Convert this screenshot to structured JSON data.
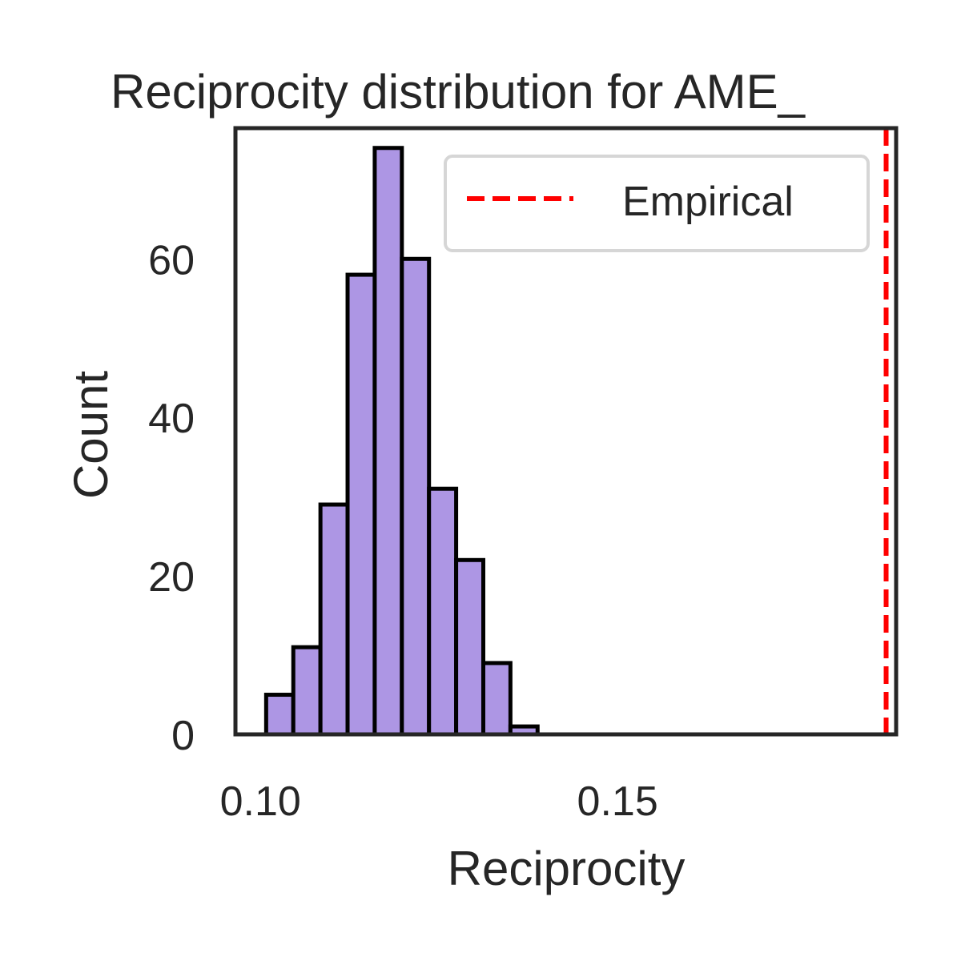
{
  "chart_data": {
    "type": "bar",
    "title": "Reciprocity distribution for AME_",
    "xlabel": "Reciprocity",
    "ylabel": "Count",
    "xlim": [
      0.0965,
      0.189
    ],
    "ylim": [
      0,
      76.5
    ],
    "x_ticks": [
      {
        "value": 0.1,
        "label": "0.10"
      },
      {
        "value": 0.15,
        "label": "0.15"
      }
    ],
    "y_ticks": [
      {
        "value": 0,
        "label": "0"
      },
      {
        "value": 20,
        "label": "20"
      },
      {
        "value": 40,
        "label": "40"
      },
      {
        "value": 60,
        "label": "60"
      }
    ],
    "bins": [
      {
        "x0": 0.1008,
        "x1": 0.1046,
        "count": 5
      },
      {
        "x0": 0.1046,
        "x1": 0.1084,
        "count": 11
      },
      {
        "x0": 0.1084,
        "x1": 0.1122,
        "count": 29
      },
      {
        "x0": 0.1122,
        "x1": 0.116,
        "count": 58
      },
      {
        "x0": 0.116,
        "x1": 0.1198,
        "count": 74
      },
      {
        "x0": 0.1198,
        "x1": 0.1236,
        "count": 60
      },
      {
        "x0": 0.1236,
        "x1": 0.1274,
        "count": 31
      },
      {
        "x0": 0.1274,
        "x1": 0.1312,
        "count": 22
      },
      {
        "x0": 0.1312,
        "x1": 0.135,
        "count": 9
      },
      {
        "x0": 0.135,
        "x1": 0.1388,
        "count": 1
      }
    ],
    "empirical_value": 0.1876,
    "legend": {
      "entries": [
        "Empirical"
      ],
      "placement": "top-right"
    },
    "grid": false,
    "colors": {
      "bar_fill": "#ad96e4",
      "bar_edge": "#000000",
      "empirical_line": "#ff0000",
      "axes": "#262626"
    }
  }
}
